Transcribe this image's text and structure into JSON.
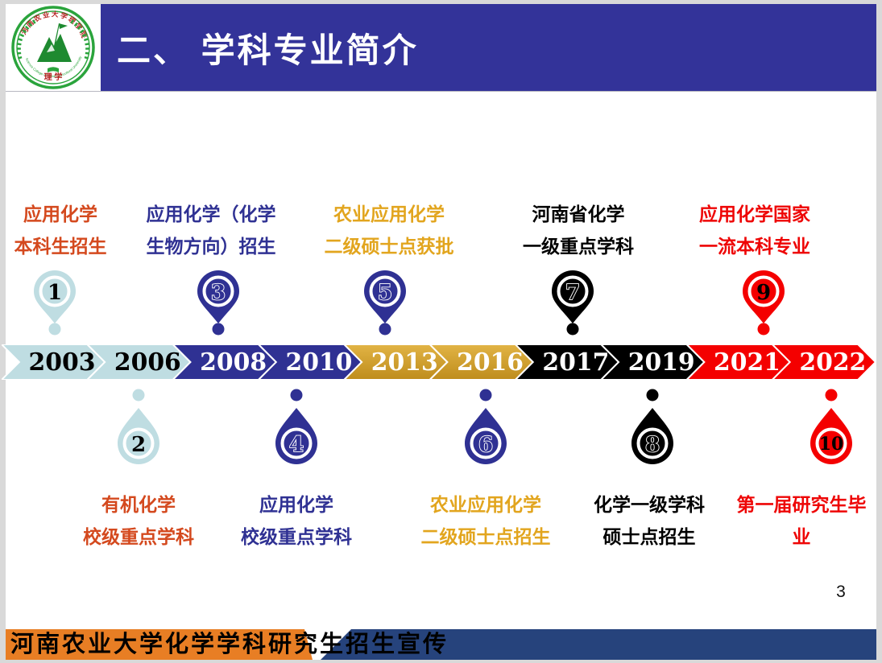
{
  "header": {
    "title": "二、 学科专业简介"
  },
  "logo": {
    "arc_top": "河南农业大学理学院",
    "arc_bottom": "Science College of Henan Agricultural University",
    "center_text": "理 学"
  },
  "palette": {
    "header_bar": "#333399",
    "light_blue": "#BFDDE2",
    "navy": "#2F3193",
    "gold": "#D2A02C",
    "gold_light": "#E2B445",
    "gold_dark": "#BE8C1C",
    "black": "#000000",
    "red": "#F40000",
    "vermilion": "#D4491E",
    "gold_text": "#E2A51E",
    "red_text": "#EE0505",
    "footer_orange": "#E87E24",
    "footer_navy": "#26437C"
  },
  "timeline": {
    "segments": [
      {
        "year": "2003",
        "theme": "light_blue"
      },
      {
        "year": "2006",
        "theme": "light_blue"
      },
      {
        "year": "2008",
        "theme": "navy"
      },
      {
        "year": "2010",
        "theme": "navy"
      },
      {
        "year": "2013",
        "theme": "gold"
      },
      {
        "year": "2016",
        "theme": "gold"
      },
      {
        "year": "2017",
        "theme": "black"
      },
      {
        "year": "2019",
        "theme": "black"
      },
      {
        "year": "2021",
        "theme": "red"
      },
      {
        "year": "2022",
        "theme": "red"
      }
    ]
  },
  "milestones": [
    {
      "num": "1",
      "side": "top",
      "theme": "light_blue",
      "label_color": "vermilion",
      "lines": [
        "应用化学",
        "本科生招生"
      ]
    },
    {
      "num": "2",
      "side": "bottom",
      "theme": "light_blue",
      "label_color": "vermilion",
      "lines": [
        "有机化学",
        "校级重点学科"
      ]
    },
    {
      "num": "3",
      "side": "top",
      "theme": "navy",
      "label_color": "navy",
      "lines": [
        "应用化学（化学",
        "生物方向）招生"
      ]
    },
    {
      "num": "4",
      "side": "bottom",
      "theme": "navy",
      "label_color": "navy",
      "lines": [
        "应用化学",
        "校级重点学科"
      ]
    },
    {
      "num": "5",
      "side": "top",
      "theme": "navy",
      "label_color": "gold_text",
      "lines": [
        "农业应用化学",
        "二级硕士点获批"
      ]
    },
    {
      "num": "6",
      "side": "bottom",
      "theme": "navy",
      "label_color": "gold_text",
      "lines": [
        "农业应用化学",
        "二级硕士点招生"
      ]
    },
    {
      "num": "7",
      "side": "top",
      "theme": "black",
      "label_color": "black",
      "lines": [
        "河南省化学",
        "一级重点学科"
      ]
    },
    {
      "num": "8",
      "side": "bottom",
      "theme": "black",
      "label_color": "black",
      "lines": [
        "化学一级学科",
        "硕士点招生"
      ]
    },
    {
      "num": "9",
      "side": "top",
      "theme": "red",
      "label_color": "red_text",
      "lines": [
        "应用化学国家",
        "一流本科专业"
      ]
    },
    {
      "num": "10",
      "side": "bottom",
      "theme": "red",
      "label_color": "red_text",
      "lines": [
        "第一届研究生毕",
        "业"
      ]
    }
  ],
  "footer": {
    "text": "河南农业大学化学学科研究生招生宣传"
  },
  "page_number": "3"
}
